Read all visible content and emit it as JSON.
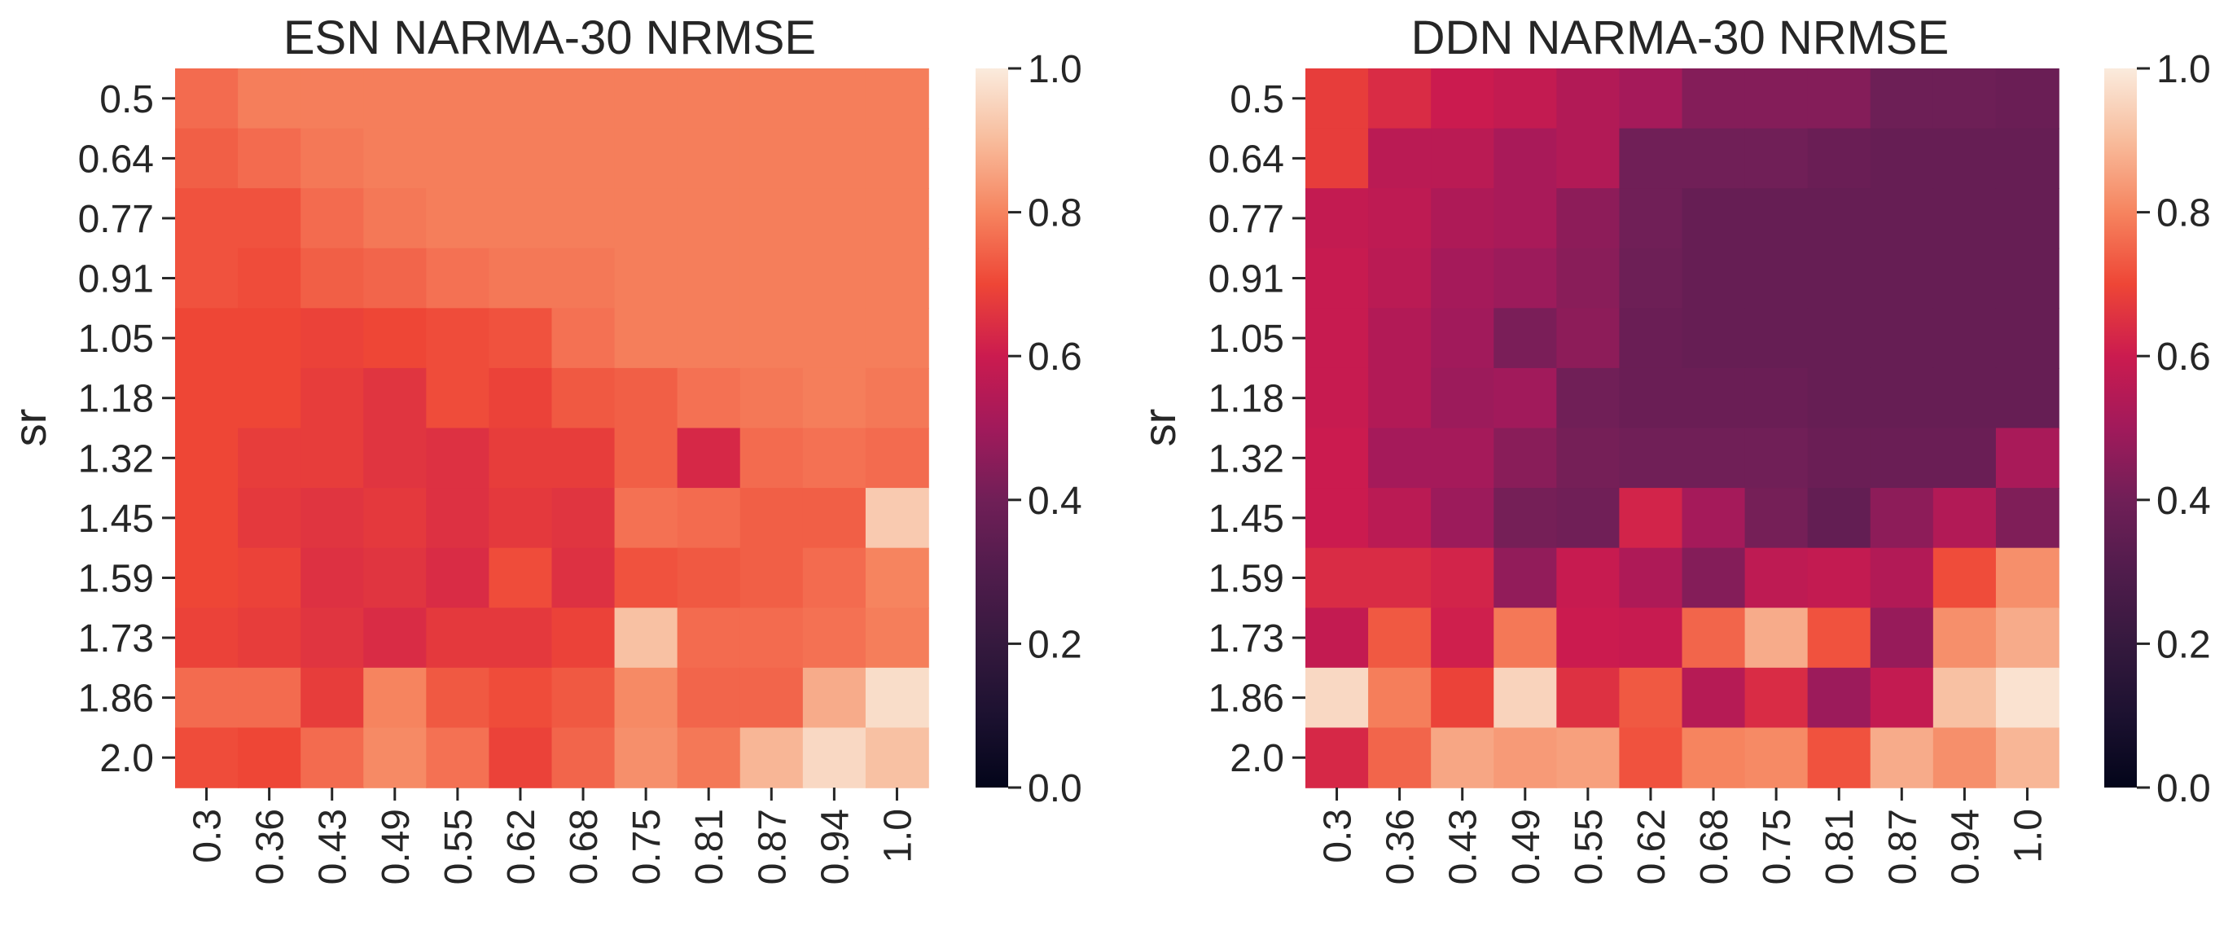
{
  "chart_data": [
    {
      "type": "heatmap",
      "title": "ESN NARMA-30 NRMSE",
      "xlabel": "",
      "ylabel": "sr",
      "x_categories": [
        "0.3",
        "0.36",
        "0.43",
        "0.49",
        "0.55",
        "0.62",
        "0.68",
        "0.75",
        "0.81",
        "0.87",
        "0.94",
        "1.0"
      ],
      "y_categories": [
        "0.5",
        "0.64",
        "0.77",
        "0.91",
        "1.05",
        "1.18",
        "1.32",
        "1.45",
        "1.59",
        "1.73",
        "1.86",
        "2.0"
      ],
      "values": [
        [
          0.76,
          0.79,
          0.79,
          0.79,
          0.79,
          0.79,
          0.79,
          0.79,
          0.79,
          0.79,
          0.79,
          0.79
        ],
        [
          0.74,
          0.76,
          0.78,
          0.79,
          0.79,
          0.79,
          0.79,
          0.79,
          0.79,
          0.79,
          0.79,
          0.79
        ],
        [
          0.72,
          0.72,
          0.76,
          0.78,
          0.79,
          0.79,
          0.79,
          0.79,
          0.79,
          0.79,
          0.79,
          0.79
        ],
        [
          0.72,
          0.71,
          0.74,
          0.75,
          0.77,
          0.78,
          0.78,
          0.79,
          0.79,
          0.79,
          0.79,
          0.79
        ],
        [
          0.7,
          0.7,
          0.69,
          0.7,
          0.71,
          0.72,
          0.77,
          0.79,
          0.79,
          0.79,
          0.79,
          0.79
        ],
        [
          0.7,
          0.7,
          0.68,
          0.66,
          0.71,
          0.69,
          0.73,
          0.74,
          0.77,
          0.78,
          0.79,
          0.78
        ],
        [
          0.7,
          0.68,
          0.68,
          0.66,
          0.65,
          0.68,
          0.68,
          0.74,
          0.63,
          0.76,
          0.77,
          0.76
        ],
        [
          0.7,
          0.67,
          0.66,
          0.67,
          0.65,
          0.67,
          0.66,
          0.77,
          0.76,
          0.74,
          0.74,
          0.93
        ],
        [
          0.7,
          0.69,
          0.65,
          0.66,
          0.64,
          0.71,
          0.65,
          0.72,
          0.73,
          0.74,
          0.76,
          0.8
        ],
        [
          0.69,
          0.68,
          0.66,
          0.64,
          0.67,
          0.67,
          0.69,
          0.91,
          0.76,
          0.76,
          0.77,
          0.79
        ],
        [
          0.76,
          0.76,
          0.68,
          0.8,
          0.73,
          0.71,
          0.73,
          0.81,
          0.75,
          0.75,
          0.87,
          0.97
        ],
        [
          0.71,
          0.7,
          0.76,
          0.81,
          0.77,
          0.69,
          0.75,
          0.82,
          0.78,
          0.89,
          0.96,
          0.91
        ]
      ],
      "vmin": 0.0,
      "vmax": 1.0,
      "colormap": "rocket",
      "colorbar_ticks": [
        "0.0",
        "0.2",
        "0.4",
        "0.6",
        "0.8",
        "1.0"
      ]
    },
    {
      "type": "heatmap",
      "title": "DDN NARMA-30 NRMSE",
      "xlabel": "",
      "ylabel": "sr",
      "x_categories": [
        "0.3",
        "0.36",
        "0.43",
        "0.49",
        "0.55",
        "0.62",
        "0.68",
        "0.75",
        "0.81",
        "0.87",
        "0.94",
        "1.0"
      ],
      "y_categories": [
        "0.5",
        "0.64",
        "0.77",
        "0.91",
        "1.05",
        "1.18",
        "1.32",
        "1.45",
        "1.59",
        "1.73",
        "1.86",
        "2.0"
      ],
      "values": [
        [
          0.68,
          0.64,
          0.6,
          0.58,
          0.54,
          0.51,
          0.44,
          0.44,
          0.44,
          0.39,
          0.39,
          0.38
        ],
        [
          0.68,
          0.56,
          0.56,
          0.52,
          0.54,
          0.4,
          0.4,
          0.4,
          0.38,
          0.37,
          0.37,
          0.37
        ],
        [
          0.58,
          0.57,
          0.53,
          0.52,
          0.46,
          0.4,
          0.37,
          0.37,
          0.37,
          0.37,
          0.37,
          0.37
        ],
        [
          0.59,
          0.56,
          0.51,
          0.49,
          0.45,
          0.39,
          0.37,
          0.37,
          0.37,
          0.37,
          0.37,
          0.37
        ],
        [
          0.59,
          0.54,
          0.5,
          0.42,
          0.46,
          0.38,
          0.37,
          0.37,
          0.37,
          0.37,
          0.37,
          0.37
        ],
        [
          0.59,
          0.54,
          0.49,
          0.5,
          0.4,
          0.38,
          0.38,
          0.38,
          0.37,
          0.37,
          0.37,
          0.37
        ],
        [
          0.6,
          0.51,
          0.51,
          0.45,
          0.41,
          0.4,
          0.4,
          0.4,
          0.38,
          0.38,
          0.38,
          0.52
        ],
        [
          0.6,
          0.56,
          0.49,
          0.41,
          0.4,
          0.62,
          0.51,
          0.41,
          0.36,
          0.46,
          0.54,
          0.43
        ],
        [
          0.64,
          0.64,
          0.62,
          0.47,
          0.59,
          0.53,
          0.44,
          0.57,
          0.58,
          0.54,
          0.71,
          0.82
        ],
        [
          0.58,
          0.73,
          0.61,
          0.78,
          0.6,
          0.59,
          0.75,
          0.87,
          0.72,
          0.48,
          0.82,
          0.87
        ],
        [
          0.96,
          0.79,
          0.69,
          0.95,
          0.65,
          0.73,
          0.55,
          0.64,
          0.49,
          0.58,
          0.91,
          0.98
        ],
        [
          0.63,
          0.75,
          0.86,
          0.84,
          0.85,
          0.72,
          0.8,
          0.81,
          0.72,
          0.87,
          0.82,
          0.89
        ]
      ],
      "vmin": 0.0,
      "vmax": 1.0,
      "colormap": "rocket",
      "colorbar_ticks": [
        "0.0",
        "0.2",
        "0.4",
        "0.6",
        "0.8",
        "1.0"
      ]
    }
  ]
}
